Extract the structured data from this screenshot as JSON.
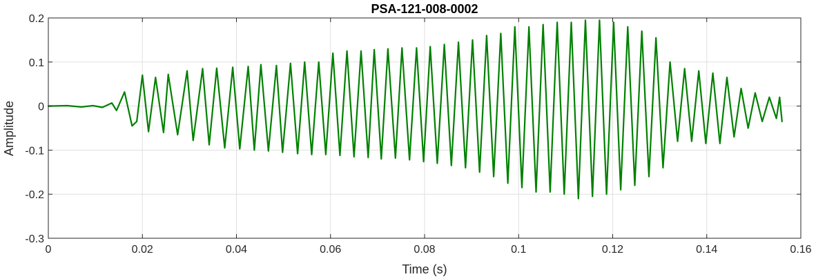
{
  "chart_data": {
    "type": "line",
    "title": "PSA-121-008-0002",
    "xlabel": "Time (s)",
    "ylabel": "Amplitude",
    "xlim": [
      0,
      0.16
    ],
    "ylim": [
      -0.3,
      0.2
    ],
    "xticks": [
      0,
      0.02,
      0.04,
      0.06,
      0.08,
      0.1,
      0.12,
      0.14,
      0.16
    ],
    "xtick_labels": [
      "0",
      "0.02",
      "0.04",
      "0.06",
      "0.08",
      "0.1",
      "0.12",
      "0.14",
      "0.16"
    ],
    "yticks": [
      -0.3,
      -0.2,
      -0.1,
      0,
      0.1,
      0.2
    ],
    "ytick_labels": [
      "-0.3",
      "-0.2",
      "-0.1",
      "0",
      "0.1",
      "0.2"
    ],
    "grid": true,
    "line_color": "#008000",
    "series": [
      {
        "x": [
          0,
          0.004,
          0.007,
          0.0095,
          0.0115,
          0.0135,
          0.0145,
          0.0162,
          0.0178,
          0.0188,
          0.02,
          0.0213,
          0.0228,
          0.0245,
          0.0255,
          0.0275,
          0.0295,
          0.0308,
          0.0328,
          0.0342,
          0.0358,
          0.0375,
          0.0392,
          0.0407,
          0.0425,
          0.0438,
          0.0452,
          0.0468,
          0.0485,
          0.0498,
          0.0515,
          0.053,
          0.0545,
          0.056,
          0.0575,
          0.059,
          0.0605,
          0.062,
          0.0635,
          0.065,
          0.0665,
          0.068,
          0.0693,
          0.0708,
          0.0722,
          0.0738,
          0.0752,
          0.0768,
          0.0783,
          0.0798,
          0.0812,
          0.0827,
          0.0842,
          0.0857,
          0.0872,
          0.0887,
          0.0902,
          0.0917,
          0.0932,
          0.0947,
          0.0962,
          0.0977,
          0.0992,
          0.1007,
          0.1022,
          0.1037,
          0.1052,
          0.1067,
          0.1082,
          0.1097,
          0.1112,
          0.1127,
          0.1142,
          0.1157,
          0.1172,
          0.1187,
          0.1202,
          0.1217,
          0.1232,
          0.1247,
          0.1262,
          0.1277,
          0.1292,
          0.1307,
          0.1322,
          0.1338,
          0.1353,
          0.1368,
          0.1383,
          0.1398,
          0.1413,
          0.1428,
          0.1443,
          0.1458,
          0.1473,
          0.1488,
          0.1503,
          0.1518,
          0.1533,
          0.1548,
          0.1555,
          0.156
        ],
        "y": [
          0,
          0.001,
          -0.002,
          0.001,
          -0.003,
          0.007,
          -0.01,
          0.032,
          -0.045,
          -0.035,
          0.07,
          -0.058,
          0.065,
          -0.06,
          0.072,
          -0.065,
          0.08,
          -0.078,
          0.085,
          -0.088,
          0.086,
          -0.095,
          0.088,
          -0.097,
          0.09,
          -0.1,
          0.094,
          -0.102,
          0.092,
          -0.105,
          0.097,
          -0.108,
          0.1,
          -0.11,
          0.1,
          -0.11,
          0.12,
          -0.112,
          0.125,
          -0.115,
          0.125,
          -0.117,
          0.128,
          -0.12,
          0.13,
          -0.118,
          0.132,
          -0.122,
          0.132,
          -0.126,
          0.135,
          -0.13,
          0.14,
          -0.135,
          0.145,
          -0.14,
          0.15,
          -0.15,
          0.16,
          -0.16,
          0.165,
          -0.175,
          0.18,
          -0.185,
          0.18,
          -0.195,
          0.185,
          -0.195,
          0.19,
          -0.2,
          0.19,
          -0.21,
          0.195,
          -0.205,
          0.195,
          -0.2,
          0.19,
          -0.19,
          0.18,
          -0.18,
          0.17,
          -0.16,
          0.155,
          -0.14,
          0.1,
          -0.08,
          0.085,
          -0.08,
          0.08,
          -0.085,
          0.075,
          -0.085,
          0.065,
          -0.07,
          0.04,
          -0.05,
          0.03,
          -0.035,
          0.02,
          -0.028,
          0.02,
          -0.035
        ]
      }
    ]
  }
}
